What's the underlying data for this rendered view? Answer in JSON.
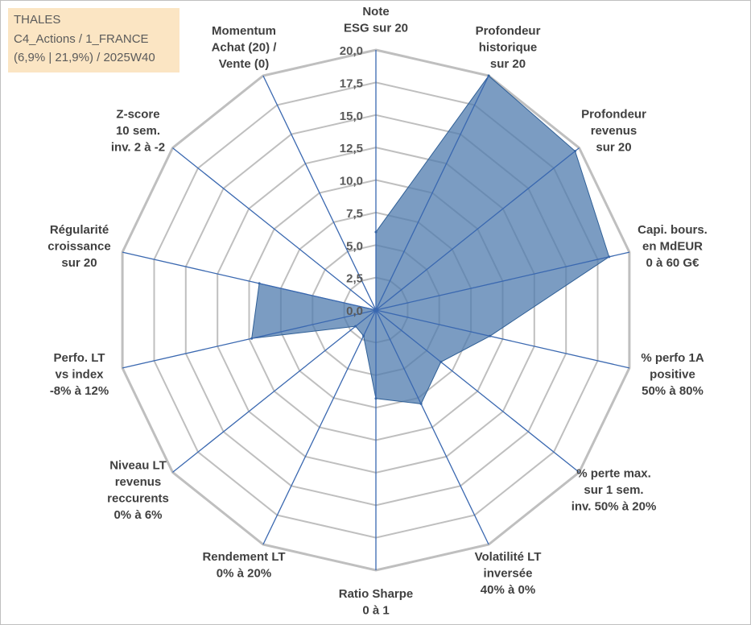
{
  "info_box": {
    "line1": "THALES",
    "line2": "C4_Actions / 1_FRANCE",
    "line3": "(6,9% | 21,9%) / 2025W40"
  },
  "chart_data": {
    "type": "radar",
    "title": "",
    "rmin": 0,
    "rmax": 20,
    "tick_step": 2.5,
    "tick_labels": [
      "0,0",
      "2,5",
      "5,0",
      "7,5",
      "10,0",
      "12,5",
      "15,0",
      "17,5",
      "20,0"
    ],
    "grid": true,
    "colors": {
      "fill": "#4f7bad",
      "stroke": "#2f5f96",
      "spoke": "#3a68b0",
      "grid": "#bfbfbf",
      "frame": "#bfbfbf",
      "info_bg": "#fbe5c3"
    },
    "axes": [
      {
        "label": [
          "Note",
          "ESG sur 20"
        ],
        "value": 6.0
      },
      {
        "label": [
          "Profondeur",
          "historique",
          "sur 20"
        ],
        "value": 20.0
      },
      {
        "label": [
          "Profondeur",
          "revenus",
          "sur 20"
        ],
        "value": 19.6
      },
      {
        "label": [
          "Capi. bours.",
          "en MdEUR",
          "0 à 60 G€"
        ],
        "value": 18.4
      },
      {
        "label": [
          "% perfo 1A",
          "positive",
          "50% à 80%"
        ],
        "value": 9.0
      },
      {
        "label": [
          "% perte max.",
          "sur 1 sem.",
          "inv. 50% à 20%"
        ],
        "value": 6.4
      },
      {
        "label": [
          "Volatilité LT",
          "inversée",
          "40% à 0%"
        ],
        "value": 8.0
      },
      {
        "label": [
          "Ratio Sharpe",
          "0 à 1"
        ],
        "value": 6.8
      },
      {
        "label": [
          "Rendement LT",
          "0% à 20%"
        ],
        "value": 2.2
      },
      {
        "label": [
          "Niveau LT",
          "revenus",
          "reccurents",
          "0% à 6%"
        ],
        "value": 2.0
      },
      {
        "label": [
          "Perfo. LT",
          "vs index",
          "-8% à 12%"
        ],
        "value": 9.8
      },
      {
        "label": [
          "Régularité",
          "croissance",
          "sur 20"
        ],
        "value": 9.2
      },
      {
        "label": [
          "Z-score",
          "10 sem.",
          "inv. 2 à -2"
        ],
        "value": 0.0
      },
      {
        "label": [
          "Momentum",
          "Achat (20) /",
          "Vente (0)"
        ],
        "value": 0.0
      }
    ]
  }
}
